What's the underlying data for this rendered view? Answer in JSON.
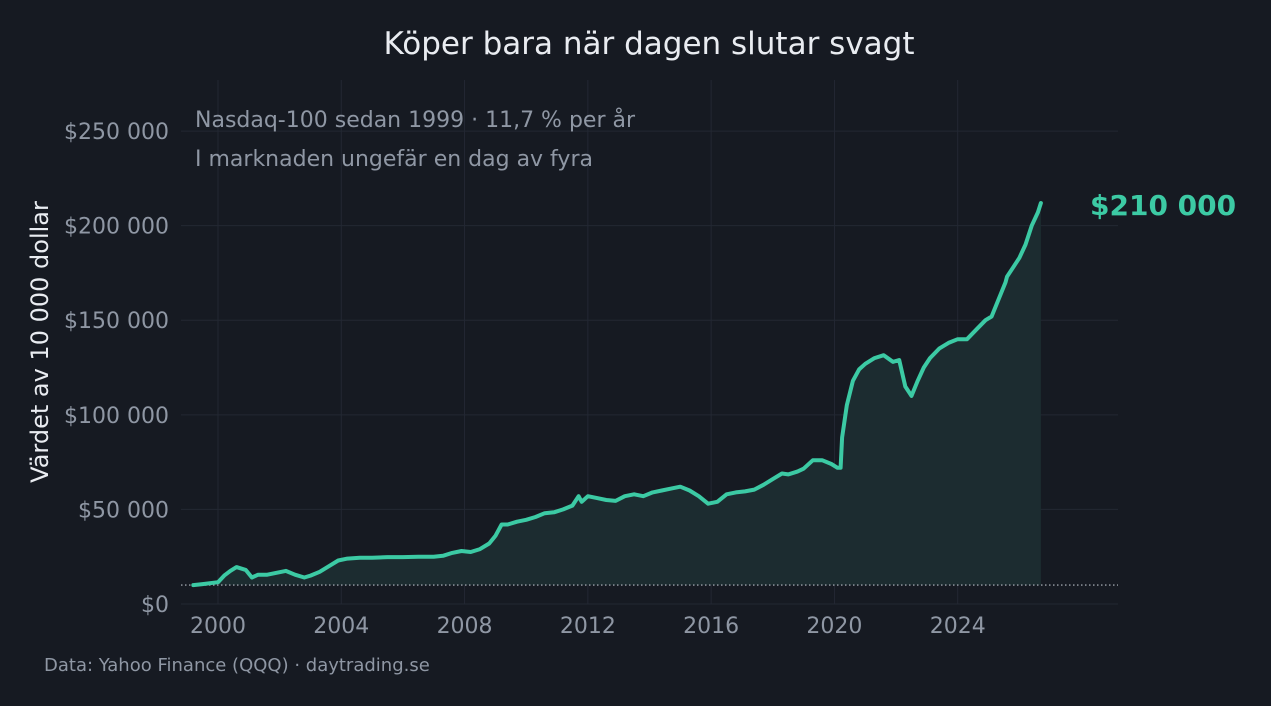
{
  "colors": {
    "background": "#161a22",
    "line": "#3ccaa4",
    "area": "#1c2c30",
    "grid": "#232833",
    "text": "#e9ecf1",
    "muted": "#8f97a4",
    "baseline": "#9aa0a8"
  },
  "source": "Data: Yahoo Finance (QQQ)  ·  daytrading.se",
  "chart_data": {
    "type": "area",
    "title": "Köper bara när dagen slutar svagt",
    "subtitle_lines": [
      "Nasdaq-100 sedan 1999  ·  11,7 % per år",
      "I marknaden ungefär en dag av fyra"
    ],
    "xlabel": "",
    "ylabel": "Värdet av 10 000 dollar",
    "xlim": [
      1998.8,
      2029.2
    ],
    "ylim": [
      0,
      277000
    ],
    "x_ticks": [
      2000,
      2004,
      2008,
      2012,
      2016,
      2020,
      2024
    ],
    "x_tick_labels": [
      "2000",
      "2004",
      "2008",
      "2012",
      "2016",
      "2020",
      "2024"
    ],
    "y_ticks": [
      0,
      50000,
      100000,
      150000,
      200000,
      250000
    ],
    "y_tick_labels": [
      "$0",
      "$50 000",
      "$100 000",
      "$150 000",
      "$200 000",
      "$250 000"
    ],
    "grid": true,
    "baseline": 10000,
    "end_label": "$210 000",
    "series": [
      {
        "x": [
          1999.2,
          1999.5,
          2000.0,
          2000.2,
          2000.4,
          2000.6,
          2000.9,
          2001.1,
          2001.3,
          2001.6,
          2001.9,
          2002.2,
          2002.5,
          2002.8,
          2003.0,
          2003.3,
          2003.6,
          2003.9,
          2004.2,
          2004.6,
          2005.0,
          2005.5,
          2006.0,
          2006.5,
          2007.0,
          2007.3,
          2007.6,
          2007.9,
          2008.2,
          2008.5,
          2008.8,
          2009.0,
          2009.2,
          2009.4,
          2009.7,
          2010.0,
          2010.3,
          2010.6,
          2010.9,
          2011.2,
          2011.5,
          2011.7,
          2011.8,
          2012.0,
          2012.3,
          2012.6,
          2012.9,
          2013.2,
          2013.5,
          2013.8,
          2014.1,
          2014.4,
          2014.7,
          2015.0,
          2015.3,
          2015.6,
          2015.9,
          2016.2,
          2016.5,
          2016.8,
          2017.1,
          2017.4,
          2017.7,
          2018.0,
          2018.3,
          2018.5,
          2018.8,
          2019.0,
          2019.3,
          2019.6,
          2019.9,
          2020.1,
          2020.2,
          2020.25,
          2020.4,
          2020.6,
          2020.8,
          2021.0,
          2021.3,
          2021.6,
          2021.9,
          2022.1,
          2022.3,
          2022.5,
          2022.7,
          2022.9,
          2023.1,
          2023.4,
          2023.7,
          2024.0,
          2024.3,
          2024.6,
          2024.9,
          2025.1,
          2025.3,
          2025.55,
          2025.6,
          2025.8,
          2026.0,
          2026.2,
          2026.4,
          2026.6,
          2026.7
        ],
        "values": [
          10000,
          10500,
          11500,
          15000,
          17500,
          19500,
          18000,
          14000,
          15500,
          15500,
          16500,
          17500,
          15500,
          14000,
          15000,
          17000,
          20000,
          23000,
          24000,
          24500,
          24500,
          24800,
          24800,
          25000,
          25000,
          25500,
          27000,
          28000,
          27500,
          29000,
          32000,
          36000,
          42000,
          42000,
          43500,
          44500,
          46000,
          48000,
          48500,
          50000,
          52000,
          57000,
          54000,
          57000,
          56000,
          55000,
          54500,
          57000,
          58000,
          57000,
          59000,
          60000,
          61000,
          62000,
          60000,
          57000,
          53000,
          54000,
          58000,
          59000,
          59500,
          60500,
          63000,
          66000,
          69000,
          68500,
          70000,
          71500,
          76000,
          76000,
          74000,
          72000,
          72000,
          88000,
          105000,
          118000,
          124000,
          127000,
          130000,
          131500,
          128000,
          129000,
          115000,
          110000,
          118000,
          125000,
          130000,
          135000,
          138000,
          140000,
          140000,
          145000,
          150000,
          152000,
          160000,
          170000,
          173000,
          178000,
          183000,
          190000,
          200000,
          207000,
          212000
        ]
      }
    ]
  }
}
